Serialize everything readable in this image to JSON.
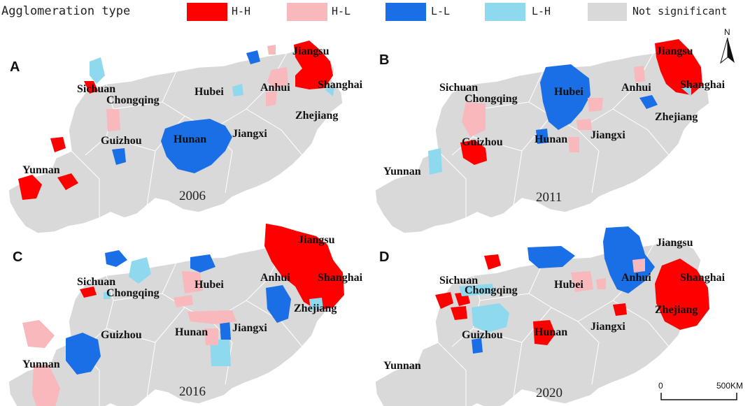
{
  "legend": {
    "title": "Agglomeration type",
    "items": [
      {
        "label": "H-H",
        "color": "#ff0000"
      },
      {
        "label": "H-L",
        "color": "#f8b8bc"
      },
      {
        "label": "L-L",
        "color": "#1a6fe6"
      },
      {
        "label": "L-H",
        "color": "#8fd9ef"
      },
      {
        "label": "Not significant",
        "color": "#d9d9d9"
      }
    ]
  },
  "colors": {
    "base": "#d9d9d9",
    "border": "#ffffff",
    "hh": "#ff0000",
    "hl": "#f8b8bc",
    "ll": "#1a6fe6",
    "lh": "#8fd9ef"
  },
  "north": {
    "label": "N"
  },
  "scalebar": {
    "start": "0",
    "end": "500KM"
  },
  "panels": [
    {
      "letter": "A",
      "year": "2006",
      "provinces": [
        "Jiangsu",
        "Sichuan",
        "Chongqing",
        "Hubei",
        "Anhui",
        "Shanghai",
        "Zhejiang",
        "Hunan",
        "Jiangxi",
        "Guizhou",
        "Yunnan"
      ]
    },
    {
      "letter": "B",
      "year": "2011",
      "provinces": [
        "Jiangsu",
        "Sichuan",
        "Chongqing",
        "Hubei",
        "Anhui",
        "Shanghai",
        "Zhejiang",
        "Hunan",
        "Jiangxi",
        "Guizhou",
        "Yunnan"
      ]
    },
    {
      "letter": "C",
      "year": "2016",
      "provinces": [
        "Jiangsu",
        "Sichuan",
        "Chongqing",
        "Hubei",
        "Anhui",
        "Shanghai",
        "Zhejiang",
        "Hunan",
        "Jiangxi",
        "Guizhou",
        "Yunnan"
      ]
    },
    {
      "letter": "D",
      "year": "2020",
      "provinces": [
        "Jiangsu",
        "Sichuan",
        "Chongqing",
        "Hubei",
        "Anhui",
        "Shanghai",
        "Zhejiang",
        "Hunan",
        "Jiangxi",
        "Guizhou",
        "Yunnan"
      ]
    }
  ]
}
